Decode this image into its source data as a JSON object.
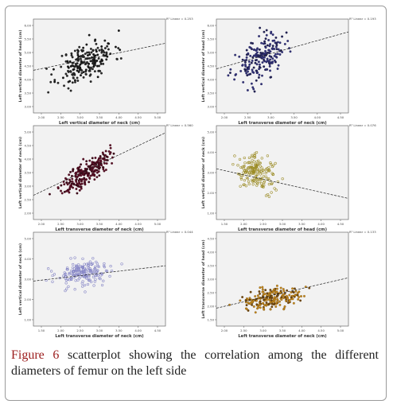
{
  "caption": {
    "figure_label": "Figure 6",
    "text": "scatterplot showing the correlation among the different diameters of femur on the left side"
  },
  "chart_data": [
    {
      "type": "scatter",
      "xlabel": "Left vertical diameter of neck (cm)",
      "ylabel": "Left vertical diameter of head (cm)",
      "r2_label": "R² Linear = 0.253",
      "x_ticks": [
        "2.00",
        "2.50",
        "3.00",
        "3.50",
        "4.00",
        "4.50",
        "5.00"
      ],
      "y_ticks": [
        "3.00",
        "3.50",
        "4.00",
        "4.50",
        "5.00",
        "5.50",
        "6.00"
      ],
      "xlim": [
        2.0,
        5.0
      ],
      "ylim": [
        2.9,
        6.2
      ],
      "fit": [
        [
          2.0,
          4.4
        ],
        [
          5.0,
          5.35
        ]
      ],
      "center": [
        3.2,
        4.7
      ],
      "spread": [
        0.32,
        0.38
      ],
      "corr": 0.5,
      "n": 220,
      "seed": 11,
      "marker": "dot",
      "color": "#2a2a2a",
      "dark": "#141414"
    },
    {
      "type": "scatter",
      "xlabel": "Left transverse diameter of neck (cm)",
      "ylabel": "Left vertical diameter of head (cm)",
      "r2_label": "R² Linear = 0.193",
      "x_ticks": [
        "2.00",
        "2.50",
        "3.00",
        "3.50",
        "4.00",
        "4.50"
      ],
      "y_ticks": [
        "3.00",
        "3.50",
        "4.00",
        "4.50",
        "5.00",
        "5.50",
        "6.00"
      ],
      "xlim": [
        1.75,
        4.75
      ],
      "ylim": [
        2.9,
        6.2
      ],
      "fit": [
        [
          1.75,
          4.45
        ],
        [
          4.75,
          5.75
        ]
      ],
      "center": [
        2.75,
        4.8
      ],
      "spread": [
        0.27,
        0.4
      ],
      "corr": 0.45,
      "n": 200,
      "seed": 23,
      "marker": "dot",
      "color": "#33337a",
      "dark": "#202050"
    },
    {
      "type": "scatter",
      "xlabel": "Left transverse diameter of neck (cm)",
      "ylabel": "Left vertical diameter of neck (cm)",
      "r2_label": "R² Linear = 0.560",
      "x_ticks": [
        "2.00",
        "2.50",
        "3.00",
        "3.50",
        "4.00",
        "4.50",
        "5.00"
      ],
      "y_ticks": [
        "2.00",
        "2.50",
        "3.00",
        "3.50",
        "4.00",
        "4.50",
        "5.00"
      ],
      "xlim": [
        1.6,
        5.0
      ],
      "ylim": [
        1.9,
        5.2
      ],
      "fit": [
        [
          1.6,
          2.75
        ],
        [
          5.0,
          4.95
        ]
      ],
      "center": [
        2.95,
        3.55
      ],
      "spread": [
        0.3,
        0.35
      ],
      "corr": 0.78,
      "n": 230,
      "seed": 37,
      "marker": "dot",
      "color": "#5a1026",
      "dark": "#3a0a18"
    },
    {
      "type": "scatter",
      "xlabel": "Left transverse diameter of head (cm)",
      "ylabel": "Left vertical diameter of neck (cm)",
      "r2_label": "R² Linear = 0.076",
      "x_ticks": [
        "1.50",
        "2.00",
        "2.50",
        "3.00",
        "3.50",
        "4.00",
        "4.50"
      ],
      "y_ticks": [
        "1.00",
        "2.00",
        "3.00",
        "4.00",
        "5.00"
      ],
      "xlim": [
        1.3,
        4.6
      ],
      "ylim": [
        0.9,
        5.8
      ],
      "fit": [
        [
          1.3,
          3.55
        ],
        [
          4.6,
          2.0
        ]
      ],
      "center": [
        2.3,
        3.35
      ],
      "spread": [
        0.25,
        0.45
      ],
      "corr": -0.25,
      "n": 170,
      "seed": 41,
      "marker": "ring",
      "color": "#9a8a22",
      "dark": "#6e6314"
    },
    {
      "type": "scatter",
      "xlabel": "Left transverse diameter of neck (cm)",
      "ylabel": "Left vertical diameter of neck (cm)",
      "r2_label": "R² Linear = 0.044",
      "x_ticks": [
        "1.50",
        "2.00",
        "2.50",
        "3.00",
        "3.50",
        "4.00",
        "4.50"
      ],
      "y_ticks": [
        "1.00",
        "2.00",
        "3.00",
        "4.00",
        "5.00"
      ],
      "xlim": [
        1.3,
        4.6
      ],
      "ylim": [
        0.9,
        5.8
      ],
      "fit": [
        [
          1.3,
          3.25
        ],
        [
          4.6,
          4.05
        ]
      ],
      "center": [
        2.55,
        3.65
      ],
      "spread": [
        0.35,
        0.35
      ],
      "corr": 0.2,
      "n": 180,
      "seed": 53,
      "marker": "ring",
      "color": "#8585c6",
      "dark": "#6a6ab0"
    },
    {
      "type": "scatter",
      "xlabel": "Left transverse diameter of neck (cm)",
      "ylabel": "Left transverse diameter of head (cm)",
      "r2_label": "R² Linear = 0.133",
      "x_ticks": [
        "2.00",
        "2.50",
        "3.00",
        "3.50",
        "4.00",
        "4.50",
        "5.00"
      ],
      "y_ticks": [
        "1.50",
        "2.00",
        "2.50",
        "3.00",
        "3.50",
        "4.00",
        "4.50"
      ],
      "xlim": [
        1.7,
        5.0
      ],
      "ylim": [
        1.3,
        4.7
      ],
      "fit": [
        [
          1.7,
          1.95
        ],
        [
          5.0,
          3.05
        ]
      ],
      "center": [
        3.05,
        2.25
      ],
      "spread": [
        0.35,
        0.2
      ],
      "corr": 0.35,
      "n": 210,
      "seed": 67,
      "marker": "dot",
      "color": "#c68a1a",
      "dark": "#6a4410"
    }
  ]
}
